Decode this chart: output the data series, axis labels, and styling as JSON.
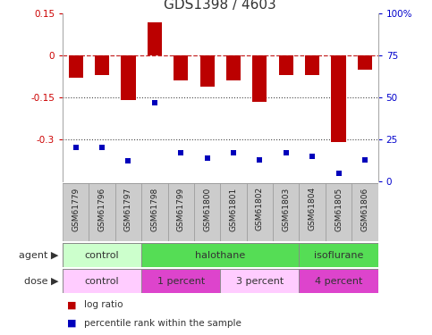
{
  "title": "GDS1398 / 4603",
  "samples": [
    "GSM61779",
    "GSM61796",
    "GSM61797",
    "GSM61798",
    "GSM61799",
    "GSM61800",
    "GSM61801",
    "GSM61802",
    "GSM61803",
    "GSM61804",
    "GSM61805",
    "GSM61806"
  ],
  "log_ratio": [
    -0.08,
    -0.07,
    -0.16,
    0.12,
    -0.09,
    -0.11,
    -0.09,
    -0.165,
    -0.07,
    -0.07,
    -0.31,
    -0.05
  ],
  "percentile_rank": [
    20,
    20,
    12,
    47,
    17,
    14,
    17,
    13,
    17,
    15,
    5,
    13
  ],
  "bar_color": "#bb0000",
  "dot_color": "#0000bb",
  "ymin": -0.45,
  "ymax": 0.15,
  "y2min": 0,
  "y2max": 100,
  "hline_y": 0,
  "dotted_lines": [
    -0.15,
    -0.3
  ],
  "agent_groups": [
    {
      "label": "control",
      "start": 0,
      "end": 3,
      "color": "#ccffcc"
    },
    {
      "label": "halothane",
      "start": 3,
      "end": 9,
      "color": "#55dd55"
    },
    {
      "label": "isoflurane",
      "start": 9,
      "end": 12,
      "color": "#55dd55"
    }
  ],
  "dose_groups": [
    {
      "label": "control",
      "start": 0,
      "end": 3,
      "color": "#ffccff"
    },
    {
      "label": "1 percent",
      "start": 3,
      "end": 6,
      "color": "#dd44cc"
    },
    {
      "label": "3 percent",
      "start": 6,
      "end": 9,
      "color": "#ffccff"
    },
    {
      "label": "4 percent",
      "start": 9,
      "end": 12,
      "color": "#dd44cc"
    }
  ],
  "agent_label": "agent",
  "dose_label": "dose",
  "legend_log_ratio": "log ratio",
  "legend_percentile": "percentile rank within the sample",
  "bar_width": 0.55,
  "sample_cell_color": "#cccccc",
  "title_fontsize": 11,
  "tick_fontsize": 7.5,
  "right_axis_color": "#0000cc",
  "left_axis_color": "#cc0000"
}
